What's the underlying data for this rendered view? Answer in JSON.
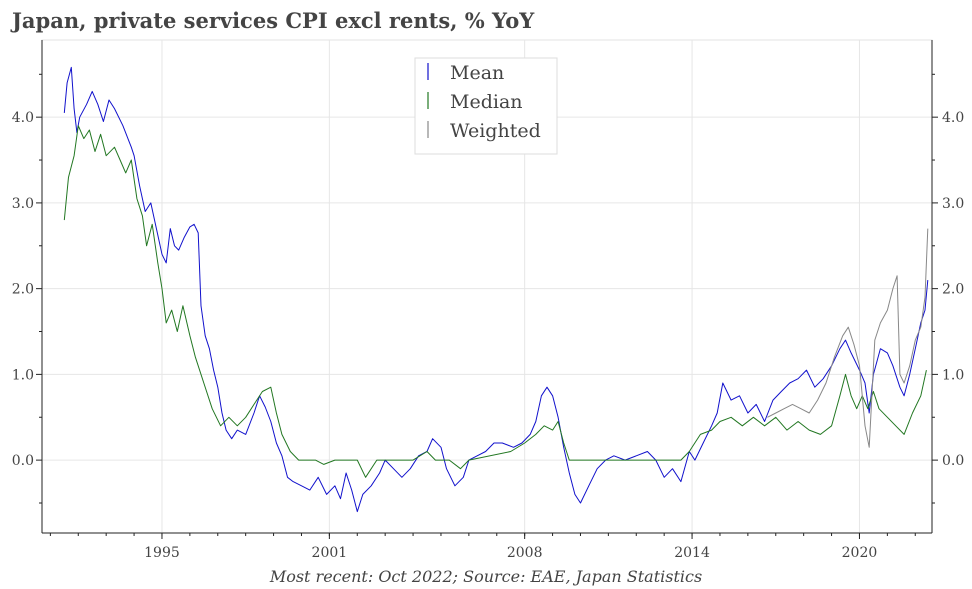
{
  "chart_data": {
    "type": "line",
    "title": "Japan, private services CPI excl rents, % YoY",
    "source_note": "Most recent: Oct 2022; Source: EAE, Japan Statistics",
    "xlim": [
      1990.7,
      2022.6
    ],
    "ylim": [
      -0.85,
      4.9
    ],
    "x_ticks": [
      {
        "value": 1995,
        "label": "1995"
      },
      {
        "value": 2001,
        "label": "2001"
      },
      {
        "value": 2008,
        "label": "2008"
      },
      {
        "value": 2014,
        "label": "2014"
      },
      {
        "value": 2020,
        "label": "2020"
      }
    ],
    "y_ticks": [
      {
        "value": 0,
        "label": "0.0"
      },
      {
        "value": 1,
        "label": "1.0"
      },
      {
        "value": 2,
        "label": "2.0"
      },
      {
        "value": 3,
        "label": "3.0"
      },
      {
        "value": 4,
        "label": "4.0"
      }
    ],
    "grid": true,
    "legend_position": "top-center",
    "series": [
      {
        "name": "Mean",
        "color": "#1111cc",
        "points": [
          [
            1991.5,
            4.05
          ],
          [
            1991.6,
            4.4
          ],
          [
            1991.75,
            4.58
          ],
          [
            1991.85,
            4.1
          ],
          [
            1991.95,
            3.82
          ],
          [
            1992.05,
            4.0
          ],
          [
            1992.3,
            4.15
          ],
          [
            1992.5,
            4.3
          ],
          [
            1992.7,
            4.15
          ],
          [
            1992.9,
            3.95
          ],
          [
            1993.1,
            4.2
          ],
          [
            1993.3,
            4.1
          ],
          [
            1993.6,
            3.9
          ],
          [
            1993.9,
            3.65
          ],
          [
            1994.0,
            3.55
          ],
          [
            1994.2,
            3.2
          ],
          [
            1994.4,
            2.9
          ],
          [
            1994.6,
            3.0
          ],
          [
            1994.8,
            2.7
          ],
          [
            1995.0,
            2.4
          ],
          [
            1995.15,
            2.3
          ],
          [
            1995.3,
            2.7
          ],
          [
            1995.45,
            2.5
          ],
          [
            1995.6,
            2.45
          ],
          [
            1995.8,
            2.6
          ],
          [
            1996.0,
            2.72
          ],
          [
            1996.15,
            2.75
          ],
          [
            1996.3,
            2.65
          ],
          [
            1996.4,
            1.8
          ],
          [
            1996.55,
            1.45
          ],
          [
            1996.7,
            1.3
          ],
          [
            1996.85,
            1.05
          ],
          [
            1997.0,
            0.85
          ],
          [
            1997.15,
            0.55
          ],
          [
            1997.3,
            0.35
          ],
          [
            1997.5,
            0.25
          ],
          [
            1997.7,
            0.35
          ],
          [
            1998.0,
            0.3
          ],
          [
            1998.3,
            0.55
          ],
          [
            1998.5,
            0.75
          ],
          [
            1998.7,
            0.62
          ],
          [
            1998.9,
            0.45
          ],
          [
            1999.1,
            0.2
          ],
          [
            1999.3,
            0.05
          ],
          [
            1999.5,
            -0.2
          ],
          [
            1999.7,
            -0.25
          ],
          [
            2000.0,
            -0.3
          ],
          [
            2000.3,
            -0.35
          ],
          [
            2000.6,
            -0.2
          ],
          [
            2000.9,
            -0.4
          ],
          [
            2001.2,
            -0.3
          ],
          [
            2001.4,
            -0.45
          ],
          [
            2001.6,
            -0.15
          ],
          [
            2001.8,
            -0.35
          ],
          [
            2002.0,
            -0.6
          ],
          [
            2002.2,
            -0.4
          ],
          [
            2002.5,
            -0.3
          ],
          [
            2002.8,
            -0.15
          ],
          [
            2003.0,
            0.0
          ],
          [
            2003.3,
            -0.1
          ],
          [
            2003.6,
            -0.2
          ],
          [
            2003.9,
            -0.1
          ],
          [
            2004.2,
            0.05
          ],
          [
            2004.5,
            0.1
          ],
          [
            2004.7,
            0.25
          ],
          [
            2005.0,
            0.15
          ],
          [
            2005.2,
            -0.1
          ],
          [
            2005.5,
            -0.3
          ],
          [
            2005.8,
            -0.2
          ],
          [
            2006.0,
            0.0
          ],
          [
            2006.3,
            0.05
          ],
          [
            2006.6,
            0.1
          ],
          [
            2006.9,
            0.2
          ],
          [
            2007.2,
            0.2
          ],
          [
            2007.6,
            0.15
          ],
          [
            2007.9,
            0.2
          ],
          [
            2008.2,
            0.3
          ],
          [
            2008.4,
            0.45
          ],
          [
            2008.6,
            0.75
          ],
          [
            2008.8,
            0.85
          ],
          [
            2009.0,
            0.75
          ],
          [
            2009.2,
            0.5
          ],
          [
            2009.4,
            0.15
          ],
          [
            2009.6,
            -0.15
          ],
          [
            2009.8,
            -0.4
          ],
          [
            2010.0,
            -0.5
          ],
          [
            2010.3,
            -0.3
          ],
          [
            2010.6,
            -0.1
          ],
          [
            2010.9,
            0.0
          ],
          [
            2011.2,
            0.05
          ],
          [
            2011.6,
            0.0
          ],
          [
            2012.0,
            0.05
          ],
          [
            2012.4,
            0.1
          ],
          [
            2012.7,
            0.0
          ],
          [
            2013.0,
            -0.2
          ],
          [
            2013.3,
            -0.1
          ],
          [
            2013.6,
            -0.25
          ],
          [
            2013.9,
            0.1
          ],
          [
            2014.1,
            0.0
          ],
          [
            2014.4,
            0.2
          ],
          [
            2014.7,
            0.4
          ],
          [
            2014.9,
            0.55
          ],
          [
            2015.1,
            0.9
          ],
          [
            2015.4,
            0.7
          ],
          [
            2015.7,
            0.75
          ],
          [
            2016.0,
            0.55
          ],
          [
            2016.3,
            0.65
          ],
          [
            2016.6,
            0.45
          ],
          [
            2016.9,
            0.7
          ],
          [
            2017.2,
            0.8
          ],
          [
            2017.5,
            0.9
          ],
          [
            2017.8,
            0.95
          ],
          [
            2018.1,
            1.05
          ],
          [
            2018.4,
            0.85
          ],
          [
            2018.7,
            0.95
          ],
          [
            2019.0,
            1.1
          ],
          [
            2019.3,
            1.3
          ],
          [
            2019.5,
            1.4
          ],
          [
            2019.7,
            1.25
          ],
          [
            2020.0,
            1.05
          ],
          [
            2020.2,
            0.9
          ],
          [
            2020.35,
            0.55
          ],
          [
            2020.5,
            1.0
          ],
          [
            2020.75,
            1.3
          ],
          [
            2021.0,
            1.25
          ],
          [
            2021.2,
            1.1
          ],
          [
            2021.45,
            0.85
          ],
          [
            2021.6,
            0.75
          ],
          [
            2021.8,
            1.0
          ],
          [
            2022.0,
            1.3
          ],
          [
            2022.2,
            1.6
          ],
          [
            2022.35,
            1.75
          ],
          [
            2022.45,
            2.1
          ]
        ]
      },
      {
        "name": "Median",
        "color": "#227722",
        "points": [
          [
            1991.5,
            2.8
          ],
          [
            1991.65,
            3.3
          ],
          [
            1991.85,
            3.55
          ],
          [
            1992.0,
            3.9
          ],
          [
            1992.2,
            3.75
          ],
          [
            1992.4,
            3.85
          ],
          [
            1992.6,
            3.6
          ],
          [
            1992.8,
            3.8
          ],
          [
            1993.0,
            3.55
          ],
          [
            1993.3,
            3.65
          ],
          [
            1993.5,
            3.5
          ],
          [
            1993.7,
            3.35
          ],
          [
            1993.9,
            3.5
          ],
          [
            1994.1,
            3.05
          ],
          [
            1994.3,
            2.85
          ],
          [
            1994.45,
            2.5
          ],
          [
            1994.65,
            2.75
          ],
          [
            1994.85,
            2.3
          ],
          [
            1995.0,
            2.0
          ],
          [
            1995.15,
            1.6
          ],
          [
            1995.35,
            1.75
          ],
          [
            1995.55,
            1.5
          ],
          [
            1995.75,
            1.8
          ],
          [
            1996.0,
            1.45
          ],
          [
            1996.2,
            1.2
          ],
          [
            1996.5,
            0.9
          ],
          [
            1996.8,
            0.6
          ],
          [
            1997.1,
            0.4
          ],
          [
            1997.4,
            0.5
          ],
          [
            1997.7,
            0.4
          ],
          [
            1998.0,
            0.5
          ],
          [
            1998.3,
            0.65
          ],
          [
            1998.6,
            0.8
          ],
          [
            1998.9,
            0.85
          ],
          [
            1999.1,
            0.55
          ],
          [
            1999.3,
            0.3
          ],
          [
            1999.6,
            0.1
          ],
          [
            1999.9,
            0.0
          ],
          [
            2000.5,
            0.0
          ],
          [
            2000.8,
            -0.05
          ],
          [
            2001.2,
            0.0
          ],
          [
            2002.0,
            0.0
          ],
          [
            2002.3,
            -0.2
          ],
          [
            2002.7,
            0.0
          ],
          [
            2004.0,
            0.0
          ],
          [
            2004.5,
            0.1
          ],
          [
            2004.8,
            0.0
          ],
          [
            2005.3,
            0.0
          ],
          [
            2005.7,
            -0.1
          ],
          [
            2006.0,
            0.0
          ],
          [
            2007.5,
            0.1
          ],
          [
            2008.0,
            0.2
          ],
          [
            2008.4,
            0.3
          ],
          [
            2008.7,
            0.4
          ],
          [
            2009.0,
            0.35
          ],
          [
            2009.2,
            0.45
          ],
          [
            2009.4,
            0.2
          ],
          [
            2009.6,
            0.0
          ],
          [
            2013.6,
            0.0
          ],
          [
            2013.9,
            0.1
          ],
          [
            2014.3,
            0.3
          ],
          [
            2014.7,
            0.35
          ],
          [
            2015.0,
            0.45
          ],
          [
            2015.4,
            0.5
          ],
          [
            2015.8,
            0.4
          ],
          [
            2016.2,
            0.5
          ],
          [
            2016.6,
            0.4
          ],
          [
            2017.0,
            0.5
          ],
          [
            2017.4,
            0.35
          ],
          [
            2017.8,
            0.45
          ],
          [
            2018.2,
            0.35
          ],
          [
            2018.6,
            0.3
          ],
          [
            2019.0,
            0.4
          ],
          [
            2019.3,
            0.75
          ],
          [
            2019.5,
            1.0
          ],
          [
            2019.7,
            0.75
          ],
          [
            2019.9,
            0.6
          ],
          [
            2020.1,
            0.75
          ],
          [
            2020.3,
            0.6
          ],
          [
            2020.5,
            0.8
          ],
          [
            2020.7,
            0.6
          ],
          [
            2021.0,
            0.5
          ],
          [
            2021.3,
            0.4
          ],
          [
            2021.6,
            0.3
          ],
          [
            2021.9,
            0.55
          ],
          [
            2022.2,
            0.75
          ],
          [
            2022.4,
            1.05
          ]
        ]
      },
      {
        "name": "Weighted",
        "color": "#888888",
        "points": [
          [
            2016.7,
            0.5
          ],
          [
            2017.0,
            0.55
          ],
          [
            2017.3,
            0.6
          ],
          [
            2017.6,
            0.65
          ],
          [
            2017.9,
            0.6
          ],
          [
            2018.2,
            0.55
          ],
          [
            2018.5,
            0.7
          ],
          [
            2018.8,
            0.9
          ],
          [
            2019.1,
            1.2
          ],
          [
            2019.4,
            1.45
          ],
          [
            2019.6,
            1.55
          ],
          [
            2019.8,
            1.35
          ],
          [
            2020.0,
            1.1
          ],
          [
            2020.2,
            0.4
          ],
          [
            2020.35,
            0.15
          ],
          [
            2020.55,
            1.4
          ],
          [
            2020.75,
            1.6
          ],
          [
            2021.0,
            1.75
          ],
          [
            2021.2,
            2.0
          ],
          [
            2021.35,
            2.15
          ],
          [
            2021.45,
            1.0
          ],
          [
            2021.6,
            0.9
          ],
          [
            2021.8,
            1.1
          ],
          [
            2022.0,
            1.4
          ],
          [
            2022.2,
            1.55
          ],
          [
            2022.35,
            1.9
          ],
          [
            2022.45,
            2.7
          ]
        ]
      }
    ]
  }
}
